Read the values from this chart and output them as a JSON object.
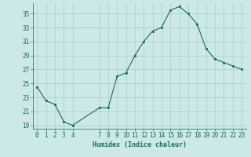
{
  "x": [
    0,
    1,
    2,
    3,
    4,
    7,
    8,
    9,
    10,
    11,
    12,
    13,
    14,
    15,
    16,
    17,
    18,
    19,
    20,
    21,
    22,
    23
  ],
  "y": [
    24.5,
    22.5,
    22.0,
    19.5,
    19.0,
    21.5,
    21.5,
    26.0,
    26.5,
    29.0,
    31.0,
    32.5,
    33.0,
    35.5,
    36.0,
    35.0,
    33.5,
    30.0,
    28.5,
    28.0,
    27.5,
    27.0
  ],
  "xlim": [
    -0.5,
    23.5
  ],
  "ylim": [
    18.5,
    36.5
  ],
  "yticks": [
    19,
    21,
    23,
    25,
    27,
    29,
    31,
    33,
    35
  ],
  "xticks": [
    0,
    1,
    2,
    3,
    4,
    7,
    8,
    9,
    10,
    11,
    12,
    13,
    14,
    15,
    16,
    17,
    18,
    19,
    20,
    21,
    22,
    23
  ],
  "xlabel": "Humidex (Indice chaleur)",
  "line_color": "#1a6b5a",
  "marker": "s",
  "marker_size": 2,
  "bg_color": "#cce8e8",
  "grid_color": "#aacccc",
  "label_fontsize": 6,
  "tick_fontsize": 5.5
}
